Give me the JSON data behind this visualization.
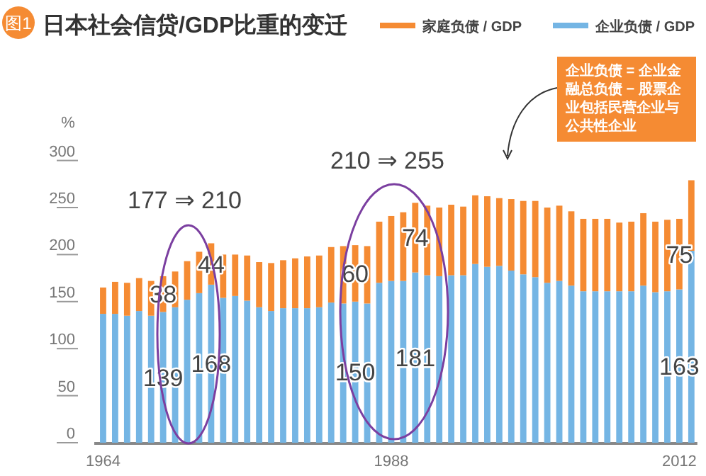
{
  "chart_data": {
    "type": "bar",
    "stacked": true,
    "title": "日本社会信贷/GDP比重的变迁",
    "ylabel": "%",
    "x": [
      1964,
      1965,
      1966,
      1967,
      1968,
      1969,
      1970,
      1971,
      1972,
      1973,
      1974,
      1975,
      1976,
      1977,
      1978,
      1979,
      1980,
      1981,
      1982,
      1983,
      1984,
      1985,
      1986,
      1987,
      1988,
      1989,
      1990,
      1991,
      1992,
      1993,
      1994,
      1995,
      1996,
      1997,
      1998,
      1999,
      2000,
      2001,
      2002,
      2003,
      2004,
      2005,
      2006,
      2007,
      2008,
      2009,
      2010,
      2011,
      2012,
      2013
    ],
    "xlim": [
      1963.5,
      2013.5
    ],
    "xticks": [
      1964,
      1988,
      2012
    ],
    "ylim": [
      0,
      300
    ],
    "yticks": [
      0,
      50,
      100,
      150,
      200,
      250,
      300
    ],
    "series": [
      {
        "name": "企业负债 / GDP",
        "color": "#74b5e4",
        "values": [
          137,
          137,
          135,
          140,
          135,
          139,
          144,
          152,
          159,
          168,
          154,
          156,
          151,
          144,
          140,
          143,
          143,
          143,
          144,
          149,
          148,
          150,
          148,
          170,
          172,
          172,
          181,
          178,
          177,
          178,
          178,
          190,
          187,
          188,
          183,
          179,
          176,
          170,
          172,
          167,
          161,
          161,
          161,
          161,
          161,
          167,
          160,
          161,
          163,
          204
        ],
        "value_labels": [
          null,
          null,
          null,
          null,
          null,
          "139",
          null,
          null,
          null,
          "168",
          null,
          null,
          null,
          null,
          null,
          null,
          null,
          null,
          null,
          null,
          null,
          "150",
          null,
          null,
          null,
          null,
          "181",
          null,
          null,
          null,
          null,
          null,
          null,
          null,
          null,
          null,
          null,
          null,
          null,
          null,
          null,
          null,
          null,
          null,
          null,
          null,
          null,
          null,
          "163",
          null
        ]
      },
      {
        "name": "家庭负债 / GDP",
        "color": "#f58b33",
        "values": [
          28,
          34,
          35,
          35,
          37,
          38,
          38,
          41,
          44,
          44,
          46,
          44,
          48,
          48,
          51,
          51,
          53,
          55,
          55,
          59,
          61,
          60,
          61,
          65,
          69,
          73,
          74,
          74,
          73,
          75,
          73,
          73,
          75,
          72,
          76,
          78,
          81,
          80,
          80,
          79,
          77,
          77,
          77,
          73,
          74,
          77,
          75,
          76,
          75,
          75
        ],
        "value_labels": [
          null,
          null,
          null,
          null,
          null,
          "38",
          null,
          null,
          null,
          "44",
          null,
          null,
          null,
          null,
          null,
          null,
          null,
          null,
          null,
          null,
          null,
          "60",
          null,
          null,
          null,
          null,
          "74",
          null,
          null,
          null,
          null,
          null,
          null,
          null,
          null,
          null,
          null,
          null,
          null,
          null,
          null,
          null,
          null,
          null,
          null,
          null,
          null,
          null,
          "75",
          null
        ]
      }
    ],
    "legend": "top right",
    "annotations": [
      "图1",
      "177 ⇒ 210",
      "210 ⇒ 255",
      "企业负债 = 企业金融总负债 − 股票企业包括民营企业与公共性企业"
    ]
  }
}
